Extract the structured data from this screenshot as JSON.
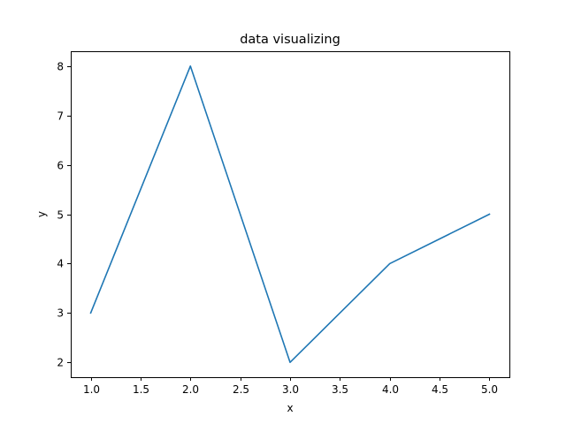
{
  "chart_data": {
    "type": "line",
    "title": "data visualizing",
    "xlabel": "x",
    "ylabel": "y",
    "x": [
      1.0,
      2.0,
      3.0,
      4.0,
      5.0
    ],
    "series": [
      {
        "values": [
          3,
          8,
          2,
          4,
          5
        ],
        "color": "#1f77b4"
      }
    ],
    "xlim": [
      0.8,
      5.2
    ],
    "ylim": [
      1.7,
      8.3
    ],
    "xticks": [
      "1.0",
      "1.5",
      "2.0",
      "2.5",
      "3.0",
      "3.5",
      "4.0",
      "4.5",
      "5.0"
    ],
    "yticks": [
      "2",
      "3",
      "4",
      "5",
      "6",
      "7",
      "8"
    ],
    "grid": false,
    "legend": "none"
  }
}
